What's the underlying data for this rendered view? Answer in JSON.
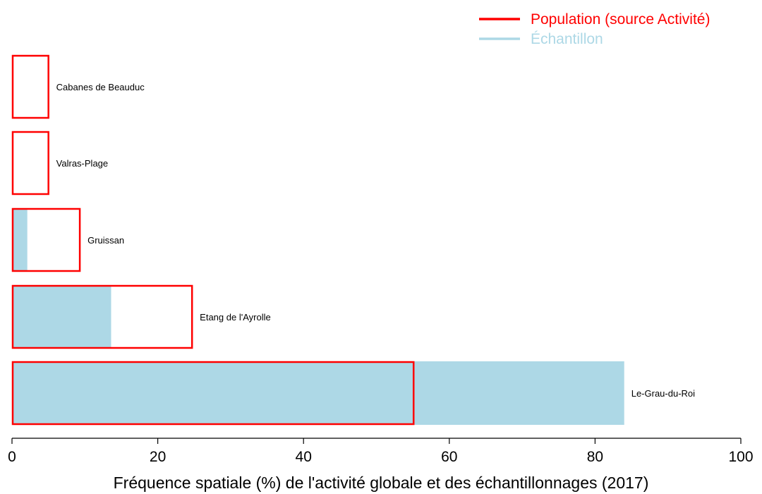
{
  "chart_data": {
    "type": "bar",
    "orientation": "horizontal",
    "categories": [
      "Le-Grau-du-Roi",
      "Etang de l'Ayrolle",
      "Gruissan",
      "Valras-Plage",
      "Cabanes de Beauduc"
    ],
    "series": [
      {
        "name": "Population (source Activité)",
        "style": "outline",
        "color": "#ff0000",
        "values": [
          55.2,
          24.8,
          9.4,
          5.1,
          5.1
        ]
      },
      {
        "name": "Échantillon",
        "style": "filled",
        "color": "#add8e6",
        "values": [
          84.0,
          13.6,
          2.1,
          0.0,
          0.0
        ]
      }
    ],
    "xlabel": "Fréquence spatiale (%) de l'activité globale et des échantillonnages (2017)",
    "xlim": [
      0,
      100
    ],
    "xticks": [
      0,
      20,
      40,
      60,
      80,
      100
    ],
    "grid": false,
    "legend_position": "top-right"
  }
}
